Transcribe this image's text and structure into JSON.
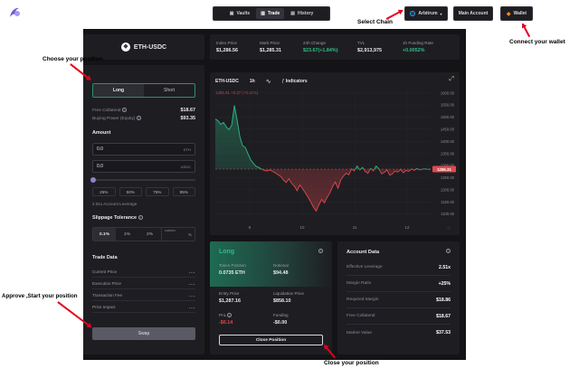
{
  "nav": {
    "tabs": [
      {
        "label": "Vaults",
        "icon": "vault-icon"
      },
      {
        "label": "Trade",
        "icon": "trade-icon"
      },
      {
        "label": "History",
        "icon": "history-icon"
      }
    ],
    "chain_label": "Arbitrum",
    "main_account_label": "Main Account",
    "wallet_label": "Wallet"
  },
  "market": {
    "pair": "ETH-USDC",
    "stats": [
      {
        "label": "Index Price",
        "value": "$1,286.56",
        "color": "#ffffff"
      },
      {
        "label": "Mark Price",
        "value": "$1,285.31",
        "color": "#ffffff"
      },
      {
        "label": "24h Change",
        "value": "$23.67(+1.84%)",
        "color": "#2ebd85"
      },
      {
        "label": "TVL",
        "value": "$2,913,975",
        "color": "#ffffff"
      },
      {
        "label": "1h Funding Rate",
        "value": "+0.0052%",
        "color": "#2ebd85"
      }
    ]
  },
  "order": {
    "long_label": "Long",
    "short_label": "Short",
    "free_collateral_label": "Free Collateral",
    "free_collateral_value": "$18.67",
    "buying_power_label": "Buying Power (Equity)",
    "buying_power_value": "$93.35",
    "amount_label": "Amount",
    "amount_eth_value": "0.0",
    "amount_eth_unit": "ETH",
    "amount_usdc_value": "0.0",
    "amount_usdc_unit": "USDC",
    "slider_fraction": 0,
    "pct_options": [
      "25%",
      "50%",
      "75%",
      "95%"
    ],
    "leverage_note": "2.51x Account Leverage",
    "slippage_label": "Slippage Tolerance",
    "slippage_options": [
      "0.1%",
      "1%",
      "2%"
    ],
    "slippage_custom_placeholder": "custom",
    "slippage_custom_unit": "%",
    "trade_data_label": "Trade Data",
    "trade_rows": [
      {
        "label": "Current Price",
        "value": "..."
      },
      {
        "label": "Execution Price",
        "value": "..."
      },
      {
        "label": "Transaction Fee",
        "value": "..."
      },
      {
        "label": "Price Impact",
        "value": "..."
      }
    ],
    "swap_label": "Swap"
  },
  "chart": {
    "pair_label": "ETH-USDC",
    "interval_label": "1h",
    "indicators_label": "Indicators",
    "ohlc_text": "1285.31 +5.27 (+0.41%)",
    "last_price_tag": "1285.31"
  },
  "chart_data": {
    "type": "area",
    "title": "",
    "x_tick_labels": [
      "9",
      "10",
      "11",
      "12"
    ],
    "y_tick_labels": [
      "1600.00",
      "1550.00",
      "1500.00",
      "1450.00",
      "1400.00",
      "1350.00",
      "1300.00",
      "1250.00",
      "1200.00",
      "1150.00",
      "1100.00"
    ],
    "ylim": [
      1080,
      1610
    ],
    "x": [
      0,
      1,
      2,
      3,
      4,
      5,
      6,
      7,
      8,
      9,
      10,
      11,
      12,
      13,
      14,
      15,
      16,
      17,
      18,
      19,
      20,
      21,
      22,
      23,
      24,
      25,
      26,
      27,
      28,
      29,
      30,
      31,
      32,
      33,
      34,
      35,
      36,
      37,
      38,
      39,
      40,
      41,
      42,
      43,
      44,
      45,
      46,
      47,
      48,
      49,
      50,
      51,
      52,
      53,
      54,
      55,
      56,
      57,
      58,
      59,
      60,
      61,
      62,
      63,
      64,
      65,
      66,
      67,
      68,
      69,
      70,
      71,
      72,
      73,
      74,
      75,
      76,
      77,
      78,
      79
    ],
    "y": [
      1492,
      1485,
      1470,
      1478,
      1460,
      1448,
      1466,
      1548,
      1488,
      1420,
      1382,
      1375,
      1348,
      1323,
      1308,
      1296,
      1292,
      1285,
      1280,
      1278,
      1282,
      1276,
      1270,
      1262,
      1255,
      1240,
      1230,
      1245,
      1226,
      1215,
      1196,
      1220,
      1205,
      1188,
      1170,
      1150,
      1128,
      1112,
      1138,
      1160,
      1146,
      1168,
      1186,
      1212,
      1232,
      1206,
      1240,
      1256,
      1268,
      1262,
      1286,
      1278,
      1298,
      1282,
      1292,
      1276,
      1268,
      1288,
      1278,
      1298,
      1286,
      1266,
      1272,
      1282,
      1260,
      1266,
      1278,
      1273,
      1284,
      1270,
      1280,
      1276,
      1286,
      1280,
      1287,
      1282,
      1285,
      1286,
      1284,
      1285.31
    ],
    "reference_line": 1285.31,
    "colors": {
      "above": "#2ebd85",
      "below": "#e0484e"
    }
  },
  "position": {
    "side_label": "Long",
    "token_position_label": "Token Position",
    "token_position_value": "0.0735 ETH",
    "notional_label": "Notional",
    "notional_value": "$94.48",
    "entry_price_label": "Entry Price",
    "entry_price_value": "$1,287.16",
    "liquidation_label": "Liquidation Price",
    "liquidation_value": "$858.10",
    "pnl_label": "PnL",
    "pnl_value": "-$0.14",
    "funding_label": "Funding",
    "funding_value": "-$0.00",
    "close_label": "Close Position"
  },
  "account": {
    "title": "Account Data",
    "rows": [
      {
        "label": "Effective Leverage",
        "value": "2.51x"
      },
      {
        "label": "Margin Ratio",
        "value": "+25%"
      },
      {
        "label": "Required Margin",
        "value": "$18.86"
      },
      {
        "label": "Free Collateral",
        "value": "$18.67"
      },
      {
        "label": "Market Value",
        "value": "$37.53"
      }
    ]
  },
  "annotations": {
    "select_chain": "Select Chain",
    "connect_wallet": "Connect your wallet",
    "choose_position": "Choose your position",
    "approve_start": "Approve ,Start your position",
    "close_position": "Close your position"
  },
  "colors": {
    "background": "#141416",
    "panel": "#1e1e22",
    "green": "#2ebd85",
    "red": "#e0484e",
    "annotation_arrow": "#e4001b"
  }
}
